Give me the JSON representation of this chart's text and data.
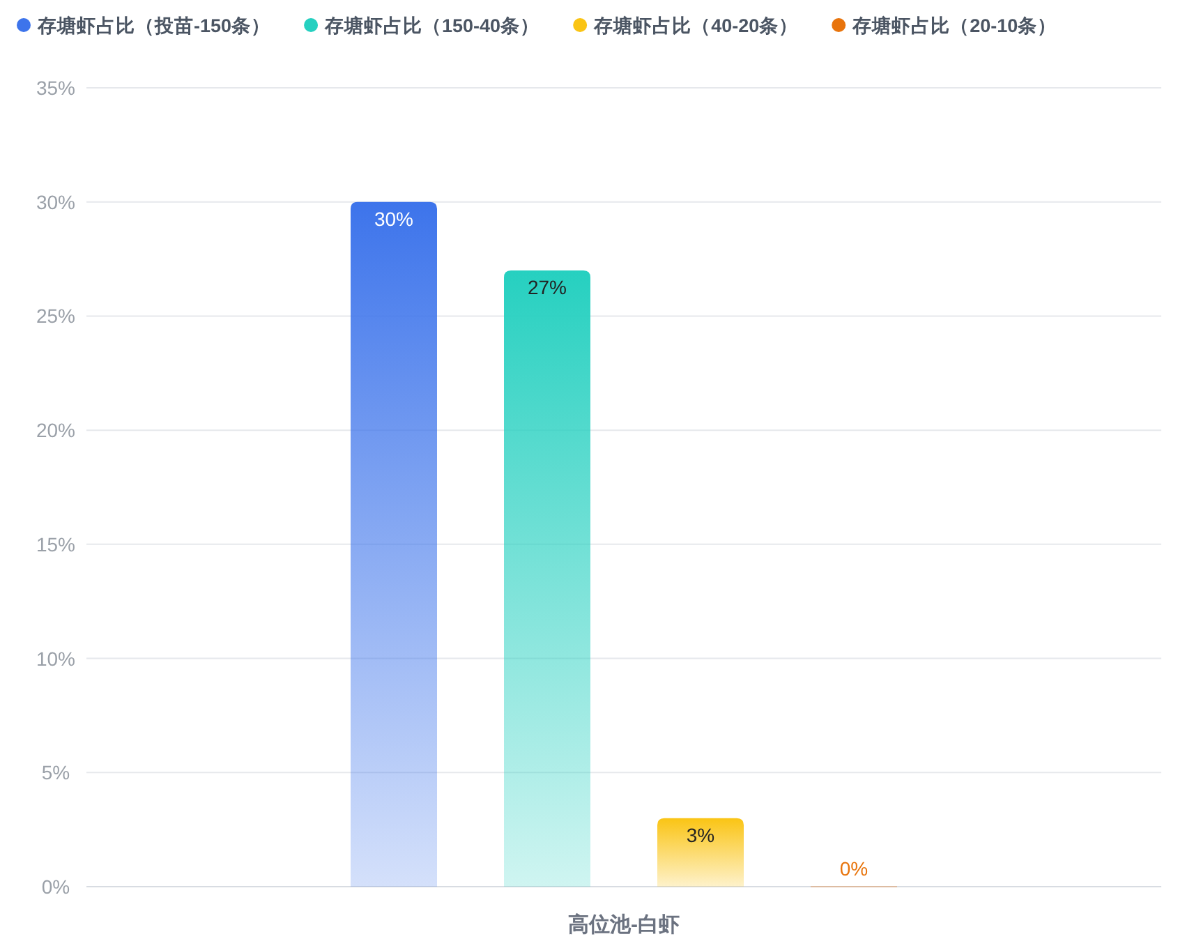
{
  "chart_data": {
    "type": "bar",
    "categories": [
      "高位池-白虾"
    ],
    "series": [
      {
        "name": "存塘虾占比（投苗-150条）",
        "color": "#3d74eb",
        "values": [
          30
        ],
        "value_labels": [
          "30%"
        ]
      },
      {
        "name": "存塘虾占比（150-40条）",
        "color": "#26d0c0",
        "values": [
          27
        ],
        "value_labels": [
          "27%"
        ]
      },
      {
        "name": "存塘虾占比（40-20条）",
        "color": "#fac414",
        "values": [
          3
        ],
        "value_labels": [
          "3%"
        ]
      },
      {
        "name": "存塘虾占比（20-10条）",
        "color": "#e8740c",
        "values": [
          0
        ],
        "value_labels": [
          "0%"
        ]
      }
    ],
    "ylim": [
      0,
      35
    ],
    "yticks": [
      {
        "value": 0,
        "label": "0%"
      },
      {
        "value": 5,
        "label": "5%"
      },
      {
        "value": 10,
        "label": "10%"
      },
      {
        "value": 15,
        "label": "15%"
      },
      {
        "value": 20,
        "label": "20%"
      },
      {
        "value": 25,
        "label": "25%"
      },
      {
        "value": 30,
        "label": "30%"
      },
      {
        "value": 35,
        "label": "35%"
      }
    ],
    "grid": "y",
    "legend": "top"
  }
}
